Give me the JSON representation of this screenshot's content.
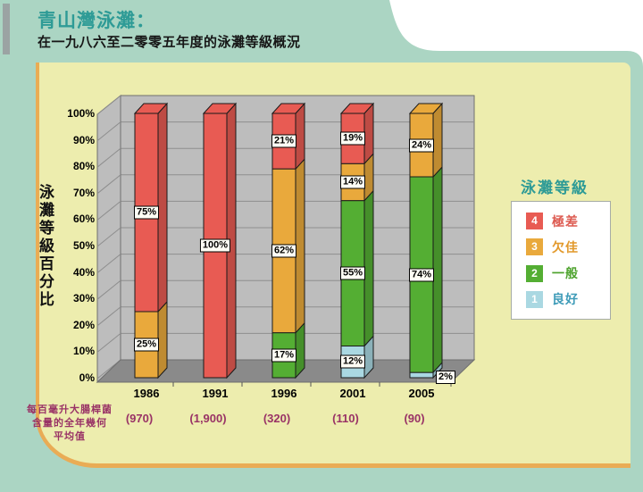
{
  "header": {
    "title": "青山灣泳灘：",
    "subtitle": "在一九八六至二零零五年度的泳灘等級概況"
  },
  "colors": {
    "page_bg": "#ABD5C3",
    "content_bg": "#EDEDAE",
    "content_border": "#E9AC55",
    "accent_bar": "#9BA3A3",
    "title_teal": "#2E9B96",
    "footnote_purple": "#993366",
    "wall": "#BDBDBD",
    "wall_line": "#8E8E8E",
    "floor": "#8A8A8A",
    "edge": "#6F6F6F",
    "bar_outline": "#1A1A1A"
  },
  "chart_data": {
    "type": "bar",
    "stacked": true,
    "projection": "3d",
    "ylabel": "泳灘等級百分比",
    "categories": [
      "1986",
      "1991",
      "1996",
      "2001",
      "2005"
    ],
    "series": [
      {
        "name": "良好",
        "grade": "1",
        "color": "#AAD8E2",
        "values": [
          0,
          0,
          0,
          12,
          2
        ]
      },
      {
        "name": "一般",
        "grade": "2",
        "color": "#54AE33",
        "values": [
          0,
          0,
          17,
          55,
          74
        ]
      },
      {
        "name": "欠佳",
        "grade": "3",
        "color": "#E9A93C",
        "values": [
          25,
          0,
          62,
          14,
          24
        ]
      },
      {
        "name": "極差",
        "grade": "4",
        "color": "#E85B53",
        "values": [
          75,
          100,
          21,
          19,
          0
        ]
      }
    ],
    "value_label_suffix": "%",
    "y_ticks": [
      "0%",
      "10%",
      "20%",
      "30%",
      "40%",
      "50%",
      "60%",
      "70%",
      "80%",
      "90%",
      "100%"
    ],
    "ylim": [
      0,
      100
    ],
    "grid": true,
    "legend_position": "right",
    "footnote_label": "每百毫升大腸桿菌含量的全年幾何平均值",
    "footnote_label_lines": [
      "每百毫升大腸桿菌",
      "含量的全年幾何",
      "平均值"
    ],
    "footnote_values": [
      "(970)",
      "(1,900)",
      "(320)",
      "(110)",
      "(90)"
    ]
  },
  "legend": {
    "title": "泳灘等級",
    "items": [
      {
        "grade": "4",
        "label": "極差",
        "color": "#E85B53",
        "text_color": "#DD5A50"
      },
      {
        "grade": "3",
        "label": "欠佳",
        "color": "#E9A93C",
        "text_color": "#E2992B"
      },
      {
        "grade": "2",
        "label": "一般",
        "color": "#54AE33",
        "text_color": "#4EA32E"
      },
      {
        "grade": "1",
        "label": "良好",
        "color": "#AAD8E2",
        "text_color": "#3E9BB8"
      }
    ]
  }
}
